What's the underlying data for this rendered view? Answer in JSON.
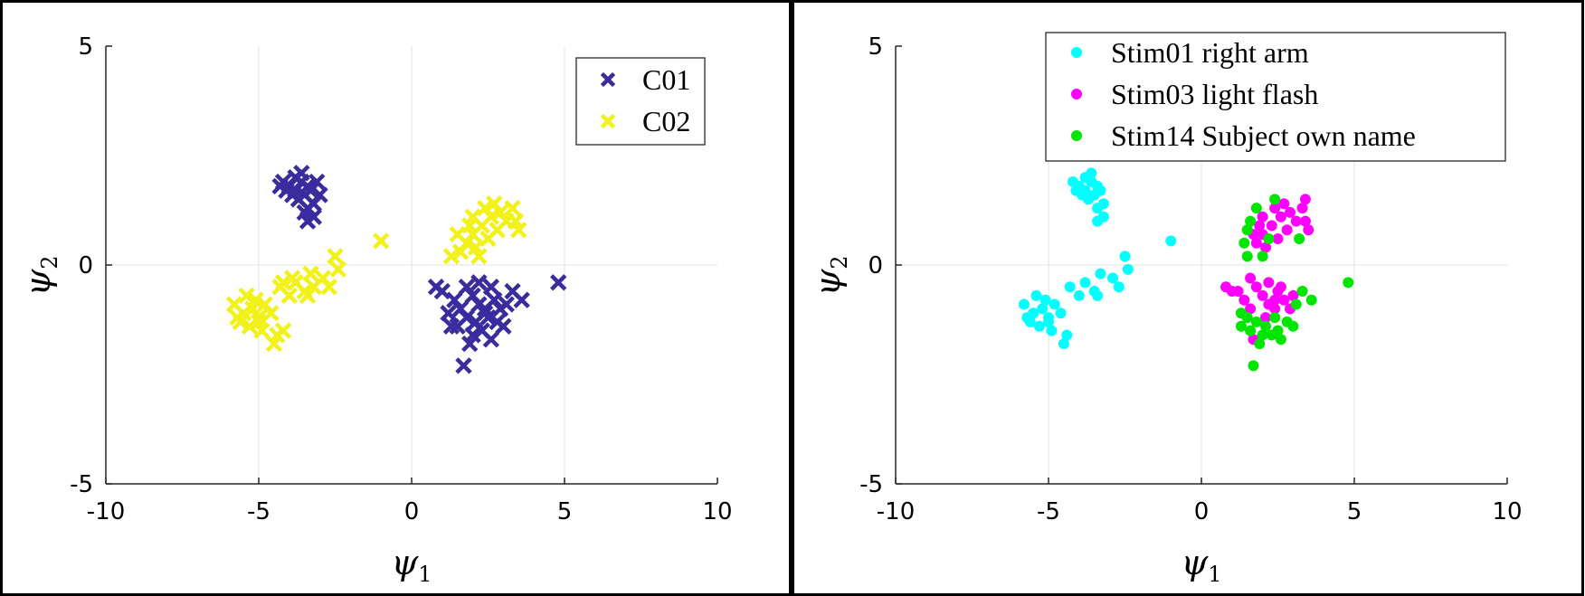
{
  "chart_data": [
    {
      "type": "scatter",
      "title": "",
      "xlabel": "ψ1",
      "ylabel": "ψ2",
      "xlim": [
        -10,
        10
      ],
      "ylim": [
        -5,
        5
      ],
      "xticks": [
        -10,
        -5,
        0,
        5,
        10
      ],
      "yticks": [
        -5,
        0,
        5
      ],
      "x_tick_labels": [
        "-10",
        "-5",
        "0",
        "5",
        "10"
      ],
      "y_tick_labels": [
        "-5",
        "0",
        "5"
      ],
      "grid": true,
      "legend_position": "top-right",
      "series": [
        {
          "name": "C01",
          "marker": "x",
          "color": "#3a2b9e",
          "points": [
            [
              -4.2,
              1.9
            ],
            [
              -4.0,
              1.8
            ],
            [
              -3.8,
              2.0
            ],
            [
              -3.6,
              1.9
            ],
            [
              -3.4,
              1.8
            ],
            [
              -3.9,
              1.6
            ],
            [
              -3.7,
              1.5
            ],
            [
              -3.5,
              1.6
            ],
            [
              -4.1,
              1.7
            ],
            [
              -3.3,
              1.7
            ],
            [
              -3.2,
              1.4
            ],
            [
              -3.4,
              1.3
            ],
            [
              -3.2,
              1.1
            ],
            [
              -3.4,
              1.0
            ],
            [
              -3.0,
              1.6
            ],
            [
              -3.8,
              1.7
            ],
            [
              -3.6,
              2.1
            ],
            [
              -4.3,
              1.8
            ],
            [
              -3.1,
              1.9
            ],
            [
              -3.5,
              1.2
            ],
            [
              1.8,
              -0.5
            ],
            [
              2.0,
              -0.7
            ],
            [
              2.2,
              -0.9
            ],
            [
              2.4,
              -1.0
            ],
            [
              1.6,
              -1.0
            ],
            [
              1.8,
              -1.2
            ],
            [
              2.1,
              -1.3
            ],
            [
              2.5,
              -1.2
            ],
            [
              2.7,
              -0.8
            ],
            [
              2.9,
              -1.0
            ],
            [
              1.4,
              -0.8
            ],
            [
              1.2,
              -1.1
            ],
            [
              1.5,
              -1.4
            ],
            [
              2.0,
              -1.6
            ],
            [
              2.3,
              -1.5
            ],
            [
              2.8,
              -1.3
            ],
            [
              3.1,
              -0.9
            ],
            [
              3.3,
              -0.6
            ],
            [
              1.0,
              -0.6
            ],
            [
              0.8,
              -0.5
            ],
            [
              2.6,
              -0.5
            ],
            [
              2.2,
              -0.4
            ],
            [
              1.9,
              -1.8
            ],
            [
              2.6,
              -1.7
            ],
            [
              3.6,
              -0.8
            ],
            [
              1.7,
              -2.3
            ],
            [
              4.8,
              -0.4
            ],
            [
              2.4,
              -1.1
            ],
            [
              1.3,
              -1.4
            ],
            [
              3.0,
              -1.4
            ]
          ]
        },
        {
          "name": "C02",
          "marker": "x",
          "color": "#f2f21a",
          "points": [
            [
              2.0,
              0.7
            ],
            [
              2.3,
              0.9
            ],
            [
              2.6,
              1.1
            ],
            [
              2.9,
              1.2
            ],
            [
              3.1,
              1.0
            ],
            [
              2.5,
              0.6
            ],
            [
              2.1,
              0.4
            ],
            [
              1.8,
              0.5
            ],
            [
              1.5,
              0.7
            ],
            [
              1.6,
              0.3
            ],
            [
              2.8,
              0.8
            ],
            [
              3.3,
              1.3
            ],
            [
              3.4,
              1.0
            ],
            [
              2.4,
              1.3
            ],
            [
              2.0,
              1.1
            ],
            [
              1.3,
              0.2
            ],
            [
              3.5,
              0.8
            ],
            [
              2.7,
              1.4
            ],
            [
              2.2,
              0.2
            ],
            [
              1.9,
              0.9
            ],
            [
              -5.8,
              -0.9
            ],
            [
              -5.5,
              -1.1
            ],
            [
              -5.2,
              -1.0
            ],
            [
              -5.0,
              -1.2
            ],
            [
              -4.8,
              -0.9
            ],
            [
              -5.3,
              -1.4
            ],
            [
              -5.6,
              -1.3
            ],
            [
              -4.9,
              -1.5
            ],
            [
              -5.1,
              -0.8
            ],
            [
              -5.4,
              -0.7
            ],
            [
              -4.6,
              -1.1
            ],
            [
              -4.4,
              -1.6
            ],
            [
              -4.2,
              -1.5
            ],
            [
              -4.5,
              -1.8
            ],
            [
              -4.3,
              -0.5
            ],
            [
              -4.0,
              -0.7
            ],
            [
              -3.8,
              -0.4
            ],
            [
              -3.5,
              -0.6
            ],
            [
              -3.3,
              -0.2
            ],
            [
              -3.4,
              -0.7
            ],
            [
              -3.2,
              -0.5
            ],
            [
              -2.7,
              -0.5
            ],
            [
              -2.5,
              0.2
            ],
            [
              -2.4,
              -0.1
            ],
            [
              -2.9,
              -0.3
            ],
            [
              -1.0,
              0.55
            ],
            [
              -4.2,
              -0.4
            ],
            [
              -3.9,
              -0.3
            ],
            [
              -5.7,
              -1.2
            ],
            [
              -5.0,
              -1.3
            ]
          ]
        }
      ]
    },
    {
      "type": "scatter",
      "title": "",
      "xlabel": "ψ1",
      "ylabel": "ψ2",
      "xlim": [
        -10,
        10
      ],
      "ylim": [
        -5,
        5
      ],
      "xticks": [
        -10,
        -5,
        0,
        5,
        10
      ],
      "yticks": [
        -5,
        0,
        5
      ],
      "x_tick_labels": [
        "-10",
        "-5",
        "0",
        "5",
        "10"
      ],
      "y_tick_labels": [
        "-5",
        "0",
        "5"
      ],
      "grid": true,
      "legend_position": "top-right",
      "series": [
        {
          "name": "Stim01 right arm",
          "marker": "o",
          "color": "#00ffff",
          "points": [
            [
              -4.2,
              1.9
            ],
            [
              -4.0,
              1.8
            ],
            [
              -3.8,
              2.0
            ],
            [
              -3.6,
              1.9
            ],
            [
              -3.4,
              1.8
            ],
            [
              -3.9,
              1.6
            ],
            [
              -3.7,
              1.5
            ],
            [
              -3.5,
              1.6
            ],
            [
              -4.1,
              1.7
            ],
            [
              -3.3,
              1.7
            ],
            [
              -3.2,
              1.4
            ],
            [
              -3.4,
              1.3
            ],
            [
              -3.2,
              1.1
            ],
            [
              -3.4,
              1.0
            ],
            [
              -3.8,
              1.7
            ],
            [
              -3.6,
              2.1
            ],
            [
              -5.8,
              -0.9
            ],
            [
              -5.5,
              -1.1
            ],
            [
              -5.2,
              -1.0
            ],
            [
              -5.0,
              -1.2
            ],
            [
              -4.8,
              -0.9
            ],
            [
              -5.3,
              -1.4
            ],
            [
              -5.6,
              -1.3
            ],
            [
              -4.9,
              -1.5
            ],
            [
              -5.1,
              -0.8
            ],
            [
              -5.4,
              -0.7
            ],
            [
              -4.6,
              -1.1
            ],
            [
              -4.4,
              -1.6
            ],
            [
              -4.5,
              -1.8
            ],
            [
              -4.3,
              -0.5
            ],
            [
              -4.0,
              -0.7
            ],
            [
              -3.8,
              -0.4
            ],
            [
              -3.5,
              -0.6
            ],
            [
              -3.3,
              -0.2
            ],
            [
              -3.4,
              -0.7
            ],
            [
              -2.7,
              -0.5
            ],
            [
              -2.5,
              0.2
            ],
            [
              -2.4,
              -0.1
            ],
            [
              -2.9,
              -0.3
            ],
            [
              -1.0,
              0.55
            ],
            [
              -5.7,
              -1.2
            ],
            [
              -5.0,
              -1.3
            ]
          ]
        },
        {
          "name": "Stim03 light flash",
          "marker": "o",
          "color": "#ff00ff",
          "points": [
            [
              2.0,
              0.7
            ],
            [
              2.3,
              0.9
            ],
            [
              2.6,
              1.1
            ],
            [
              2.9,
              1.2
            ],
            [
              3.1,
              1.0
            ],
            [
              2.5,
              0.6
            ],
            [
              2.1,
              0.4
            ],
            [
              1.8,
              0.5
            ],
            [
              1.7,
              0.7
            ],
            [
              2.8,
              0.8
            ],
            [
              3.3,
              1.3
            ],
            [
              3.4,
              1.0
            ],
            [
              2.4,
              1.3
            ],
            [
              2.0,
              1.1
            ],
            [
              3.5,
              0.8
            ],
            [
              2.7,
              1.4
            ],
            [
              1.9,
              0.9
            ],
            [
              3.4,
              1.5
            ],
            [
              1.8,
              -0.5
            ],
            [
              2.0,
              -0.7
            ],
            [
              2.2,
              -0.9
            ],
            [
              2.4,
              -1.0
            ],
            [
              1.6,
              -1.0
            ],
            [
              2.5,
              -0.6
            ],
            [
              2.7,
              -0.8
            ],
            [
              2.9,
              -1.0
            ],
            [
              1.4,
              -0.8
            ],
            [
              1.2,
              -0.6
            ],
            [
              1.0,
              -0.6
            ],
            [
              0.8,
              -0.5
            ],
            [
              2.6,
              -0.5
            ],
            [
              2.2,
              -0.4
            ],
            [
              3.0,
              -0.7
            ],
            [
              1.6,
              -0.3
            ],
            [
              2.1,
              -1.2
            ],
            [
              1.7,
              -1.7
            ],
            [
              2.4,
              -0.8
            ]
          ]
        },
        {
          "name": "Stim14 Subject own name",
          "marker": "o",
          "color": "#00e600",
          "points": [
            [
              1.6,
              1.0
            ],
            [
              1.4,
              0.5
            ],
            [
              1.5,
              0.2
            ],
            [
              2.0,
              0.2
            ],
            [
              2.2,
              0.6
            ],
            [
              1.8,
              1.3
            ],
            [
              2.4,
              1.5
            ],
            [
              1.5,
              0.8
            ],
            [
              3.2,
              0.6
            ],
            [
              1.5,
              -1.2
            ],
            [
              1.8,
              -1.3
            ],
            [
              2.1,
              -1.4
            ],
            [
              2.5,
              -1.5
            ],
            [
              1.3,
              -1.1
            ],
            [
              1.6,
              -1.5
            ],
            [
              2.0,
              -1.6
            ],
            [
              2.3,
              -1.6
            ],
            [
              2.8,
              -1.3
            ],
            [
              3.1,
              -0.9
            ],
            [
              3.3,
              -0.6
            ],
            [
              1.9,
              -1.8
            ],
            [
              2.6,
              -1.7
            ],
            [
              3.6,
              -0.8
            ],
            [
              1.7,
              -2.3
            ],
            [
              4.8,
              -0.4
            ],
            [
              1.3,
              -1.4
            ],
            [
              3.0,
              -1.4
            ],
            [
              2.4,
              -1.2
            ]
          ]
        }
      ]
    }
  ]
}
